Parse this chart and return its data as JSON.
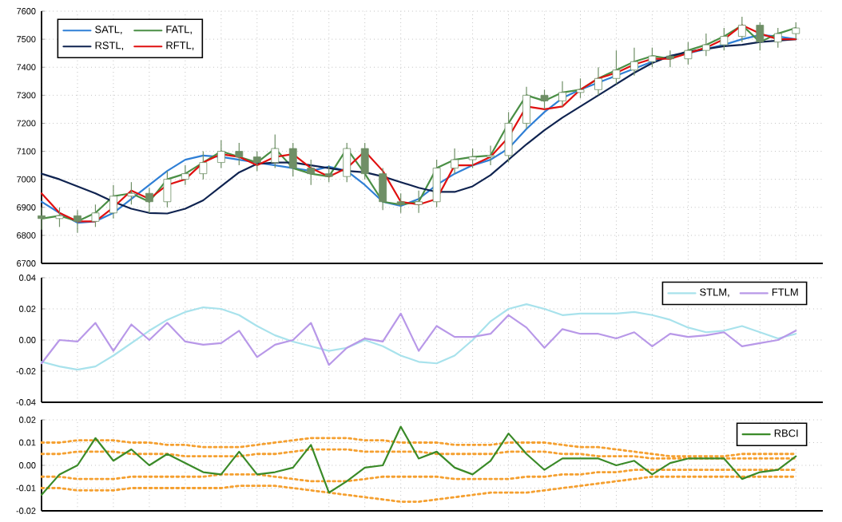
{
  "chart_data": [
    {
      "type": "line",
      "categories": [
        null,
        null,
        null,
        null,
        null,
        null,
        null,
        null,
        null,
        null,
        null,
        null,
        null,
        null,
        null,
        null,
        null,
        null,
        null,
        null,
        null,
        null,
        null,
        null,
        null,
        null,
        null,
        null,
        null,
        null,
        null,
        null,
        null,
        null,
        null,
        null,
        null,
        null,
        null,
        null,
        null,
        null,
        null
      ],
      "ylim": [
        6700,
        7600
      ],
      "yticks": [
        6700,
        6800,
        6900,
        7000,
        7100,
        7200,
        7300,
        7400,
        7500,
        7600
      ],
      "grid": true,
      "legend": "top left",
      "tick_labels": "y",
      "series": [
        {
          "name": "SATL,",
          "color": "#2f7fd6",
          "values": [
            6920,
            6880,
            6845,
            6850,
            6880,
            6930,
            6980,
            7030,
            7070,
            7085,
            7080,
            7070,
            7060,
            7050,
            7040,
            7030,
            7045,
            7030,
            6980,
            6920,
            6905,
            6930,
            6980,
            7020,
            7050,
            7070,
            7110,
            7180,
            7240,
            7290,
            7320,
            7345,
            7370,
            7395,
            7420,
            7440,
            7450,
            7465,
            7480,
            7500,
            7515,
            7510,
            7500
          ]
        },
        {
          "name": "FATL,",
          "color": "#4a8f45",
          "values": [
            6860,
            6870,
            6850,
            6880,
            6940,
            6950,
            6920,
            7000,
            7020,
            7060,
            7100,
            7080,
            7060,
            7110,
            7040,
            7020,
            7010,
            7110,
            7020,
            6920,
            6910,
            6920,
            7040,
            7070,
            7080,
            7085,
            7200,
            7300,
            7280,
            7310,
            7320,
            7360,
            7390,
            7420,
            7440,
            7430,
            7460,
            7480,
            7510,
            7550,
            7490,
            7520,
            7540
          ]
        },
        {
          "name": "RSTL,",
          "color": "#0f2350",
          "values": [
            7020,
            7000,
            6975,
            6950,
            6920,
            6895,
            6880,
            6878,
            6895,
            6925,
            6975,
            7025,
            7055,
            7060,
            7060,
            7050,
            7040,
            7030,
            7025,
            7010,
            6990,
            6970,
            6955,
            6955,
            6975,
            7015,
            7070,
            7125,
            7175,
            7220,
            7260,
            7300,
            7340,
            7380,
            7415,
            7440,
            7455,
            7465,
            7475,
            7480,
            7490,
            7495,
            7500
          ]
        },
        {
          "name": "RFTL,",
          "color": "#e01010",
          "values": [
            6950,
            6880,
            6850,
            6850,
            6900,
            6960,
            6930,
            6980,
            7000,
            7060,
            7090,
            7080,
            7050,
            7080,
            7090,
            7040,
            7010,
            7040,
            7100,
            7030,
            6920,
            6910,
            6930,
            7050,
            7050,
            7080,
            7150,
            7260,
            7250,
            7260,
            7320,
            7360,
            7380,
            7410,
            7430,
            7430,
            7450,
            7470,
            7500,
            7550,
            7520,
            7500,
            7500
          ]
        },
        {
          "type": "candlestick",
          "color": "#6f8f66",
          "ohlc": [
            [
              6870,
              6900,
              6820,
              6860
            ],
            [
              6860,
              6900,
              6830,
              6870
            ],
            [
              6870,
              6890,
              6810,
              6850
            ],
            [
              6850,
              6910,
              6830,
              6880
            ],
            [
              6880,
              6980,
              6860,
              6940
            ],
            [
              6940,
              6990,
              6910,
              6950
            ],
            [
              6950,
              6970,
              6880,
              6920
            ],
            [
              6920,
              7030,
              6900,
              7000
            ],
            [
              7000,
              7050,
              6980,
              7020
            ],
            [
              7020,
              7100,
              7000,
              7060
            ],
            [
              7060,
              7140,
              7040,
              7100
            ],
            [
              7100,
              7130,
              7050,
              7080
            ],
            [
              7080,
              7100,
              7030,
              7060
            ],
            [
              7060,
              7160,
              7040,
              7110
            ],
            [
              7110,
              7130,
              7010,
              7040
            ],
            [
              7040,
              7070,
              6980,
              7020
            ],
            [
              7020,
              7050,
              6990,
              7010
            ],
            [
              7010,
              7130,
              6990,
              7110
            ],
            [
              7110,
              7130,
              7000,
              7020
            ],
            [
              7020,
              7040,
              6890,
              6920
            ],
            [
              6920,
              6950,
              6880,
              6910
            ],
            [
              6910,
              6960,
              6880,
              6920
            ],
            [
              6920,
              7070,
              6900,
              7040
            ],
            [
              7040,
              7110,
              7020,
              7070
            ],
            [
              7070,
              7110,
              7040,
              7080
            ],
            [
              7080,
              7120,
              7050,
              7085
            ],
            [
              7085,
              7240,
              7060,
              7200
            ],
            [
              7200,
              7330,
              7180,
              7300
            ],
            [
              7300,
              7320,
              7250,
              7280
            ],
            [
              7280,
              7350,
              7260,
              7310
            ],
            [
              7310,
              7360,
              7290,
              7320
            ],
            [
              7320,
              7400,
              7300,
              7360
            ],
            [
              7360,
              7460,
              7340,
              7390
            ],
            [
              7390,
              7470,
              7370,
              7420
            ],
            [
              7420,
              7470,
              7400,
              7440
            ],
            [
              7440,
              7460,
              7400,
              7430
            ],
            [
              7430,
              7490,
              7410,
              7460
            ],
            [
              7460,
              7520,
              7440,
              7480
            ],
            [
              7480,
              7540,
              7460,
              7510
            ],
            [
              7510,
              7580,
              7490,
              7550
            ],
            [
              7550,
              7560,
              7460,
              7490
            ],
            [
              7490,
              7540,
              7470,
              7520
            ],
            [
              7520,
              7560,
              7500,
              7540
            ]
          ]
        }
      ]
    },
    {
      "type": "line",
      "categories": [
        null,
        null,
        null,
        null,
        null,
        null,
        null,
        null,
        null,
        null,
        null,
        null,
        null,
        null,
        null,
        null,
        null,
        null,
        null,
        null,
        null,
        null,
        null,
        null,
        null,
        null,
        null,
        null,
        null,
        null,
        null,
        null,
        null,
        null,
        null,
        null,
        null,
        null,
        null,
        null,
        null,
        null,
        null
      ],
      "ylim": [
        -0.04,
        0.04
      ],
      "yticks": [
        -0.04,
        -0.02,
        {
          "value": 0,
          "label": "0.00"
        },
        0.02,
        0.04
      ],
      "grid": true,
      "legend": "top right",
      "tick_labels": "y",
      "series": [
        {
          "name": "STLM,",
          "color": "#a8e2ec",
          "values": [
            -0.014,
            -0.017,
            -0.019,
            -0.017,
            -0.01,
            -0.002,
            0.006,
            0.013,
            0.018,
            0.021,
            0.02,
            0.016,
            0.009,
            0.003,
            -0.001,
            -0.004,
            -0.007,
            -0.005,
            0.0,
            -0.004,
            -0.01,
            -0.014,
            -0.015,
            -0.01,
            0.0,
            0.012,
            0.02,
            0.023,
            0.02,
            0.016,
            0.017,
            0.017,
            0.017,
            0.018,
            0.016,
            0.013,
            0.008,
            0.005,
            0.006,
            0.009,
            0.005,
            0.001,
            0.004
          ]
        },
        {
          "name": "FTLM",
          "color": "#b898e8",
          "values": [
            -0.015,
            0.0,
            -0.001,
            0.011,
            -0.007,
            0.01,
            0.0,
            0.011,
            -0.001,
            -0.003,
            -0.002,
            0.006,
            -0.011,
            -0.003,
            0.0,
            0.011,
            -0.016,
            -0.005,
            0.001,
            -0.001,
            0.017,
            -0.007,
            0.009,
            0.002,
            0.002,
            0.004,
            0.016,
            0.008,
            -0.005,
            0.007,
            0.004,
            0.004,
            0.001,
            0.005,
            -0.004,
            0.004,
            0.002,
            0.003,
            0.005,
            -0.004,
            -0.002,
            0.0,
            0.006
          ]
        }
      ]
    },
    {
      "type": "line",
      "categories": [
        null,
        null,
        null,
        null,
        null,
        null,
        null,
        null,
        null,
        null,
        null,
        null,
        null,
        null,
        null,
        null,
        null,
        null,
        null,
        null,
        null,
        null,
        null,
        null,
        null,
        null,
        null,
        null,
        null,
        null,
        null,
        null,
        null,
        null,
        null,
        null,
        null,
        null,
        null,
        null,
        null,
        null,
        null
      ],
      "ylim": [
        -0.02,
        0.02
      ],
      "yticks": [
        -0.02,
        -0.01,
        {
          "value": 0,
          "label": "0.00"
        },
        0.01,
        0.02
      ],
      "grid": true,
      "legend": "top right",
      "tick_labels": "y",
      "series": [
        {
          "color": "#f5a030",
          "line_style": "dotted",
          "values": [
            0.01,
            0.01,
            0.011,
            0.011,
            0.011,
            0.01,
            0.01,
            0.009,
            0.009,
            0.008,
            0.008,
            0.008,
            0.009,
            0.01,
            0.011,
            0.012,
            0.012,
            0.012,
            0.011,
            0.011,
            0.01,
            0.01,
            0.01,
            0.009,
            0.009,
            0.009,
            0.01,
            0.01,
            0.01,
            0.009,
            0.008,
            0.008,
            0.007,
            0.006,
            0.005,
            0.004,
            0.004,
            0.004,
            0.004,
            0.005,
            0.005,
            0.005,
            0.005
          ]
        },
        {
          "color": "#f5a030",
          "line_style": "dotted",
          "values": [
            0.005,
            0.005,
            0.006,
            0.006,
            0.006,
            0.005,
            0.005,
            0.005,
            0.004,
            0.004,
            0.004,
            0.004,
            0.005,
            0.005,
            0.006,
            0.007,
            0.007,
            0.007,
            0.006,
            0.006,
            0.006,
            0.006,
            0.005,
            0.005,
            0.005,
            0.005,
            0.006,
            0.006,
            0.006,
            0.005,
            0.005,
            0.004,
            0.004,
            0.004,
            0.003,
            0.003,
            0.003,
            0.003,
            0.003,
            0.003,
            0.003,
            0.003,
            0.003
          ]
        },
        {
          "color": "#f5a030",
          "line_style": "dotted",
          "values": [
            -0.005,
            -0.005,
            -0.006,
            -0.006,
            -0.006,
            -0.005,
            -0.005,
            -0.005,
            -0.005,
            -0.005,
            -0.004,
            -0.004,
            -0.004,
            -0.005,
            -0.006,
            -0.007,
            -0.007,
            -0.007,
            -0.006,
            -0.005,
            -0.005,
            -0.005,
            -0.005,
            -0.006,
            -0.006,
            -0.006,
            -0.006,
            -0.005,
            -0.005,
            -0.004,
            -0.004,
            -0.003,
            -0.003,
            -0.002,
            -0.002,
            -0.002,
            -0.002,
            -0.002,
            -0.002,
            -0.002,
            -0.002,
            -0.002,
            -0.002
          ]
        },
        {
          "color": "#f5a030",
          "line_style": "dotted",
          "values": [
            -0.01,
            -0.01,
            -0.011,
            -0.011,
            -0.011,
            -0.01,
            -0.01,
            -0.01,
            -0.01,
            -0.01,
            -0.01,
            -0.009,
            -0.009,
            -0.009,
            -0.01,
            -0.011,
            -0.012,
            -0.013,
            -0.014,
            -0.015,
            -0.016,
            -0.016,
            -0.015,
            -0.014,
            -0.013,
            -0.012,
            -0.012,
            -0.012,
            -0.011,
            -0.01,
            -0.009,
            -0.008,
            -0.007,
            -0.006,
            -0.005,
            -0.005,
            -0.005,
            -0.005,
            -0.005,
            -0.005,
            -0.005,
            -0.005,
            -0.005
          ]
        },
        {
          "name": "RBCI",
          "color": "#3a8a28",
          "values": [
            -0.013,
            -0.004,
            0.0,
            0.012,
            0.002,
            0.007,
            0.0,
            0.005,
            0.001,
            -0.003,
            -0.004,
            0.006,
            -0.004,
            -0.003,
            -0.001,
            0.009,
            -0.012,
            -0.007,
            -0.001,
            0.0,
            0.017,
            0.003,
            0.006,
            -0.001,
            -0.004,
            0.002,
            0.014,
            0.005,
            -0.002,
            0.003,
            0.003,
            0.003,
            0.0,
            0.002,
            -0.004,
            0.001,
            0.003,
            0.003,
            0.003,
            -0.006,
            -0.003,
            -0.002,
            0.004
          ]
        }
      ]
    }
  ]
}
